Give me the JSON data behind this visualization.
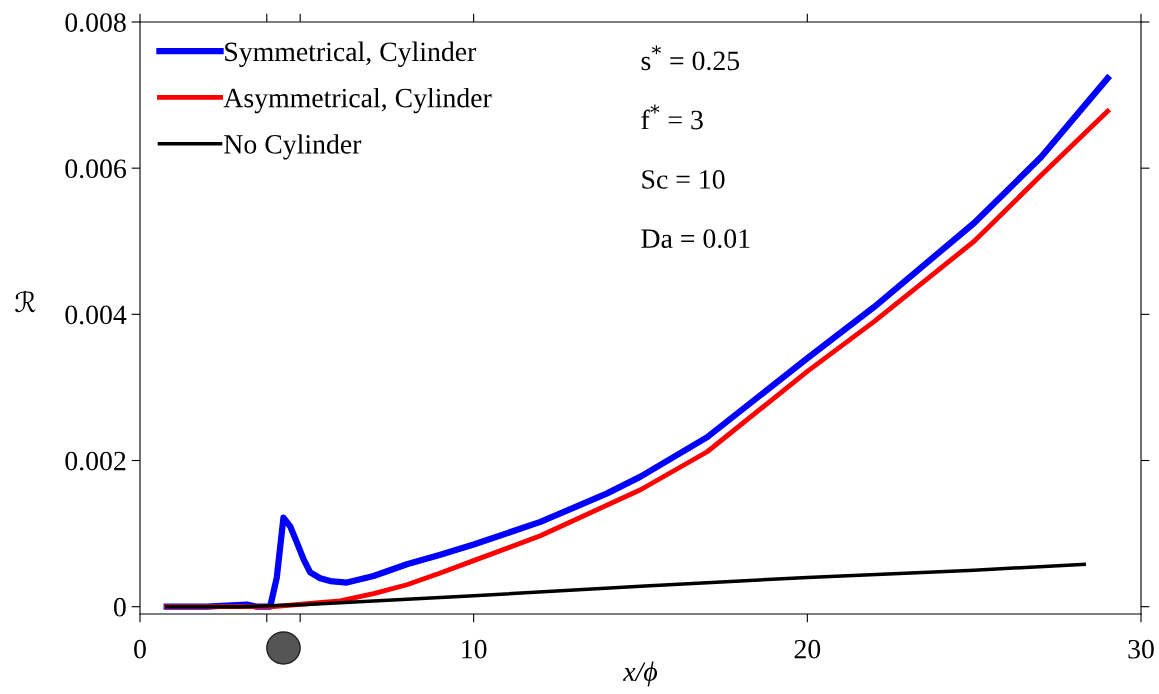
{
  "chart_data": {
    "type": "line",
    "xlabel": "x/ϕ",
    "ylabel": "ℛ",
    "xlim": [
      0,
      30
    ],
    "xticks": [
      0,
      {
        "value": 3.8,
        "label": null
      },
      {
        "value": 4.8,
        "label": null
      },
      10,
      20,
      30
    ],
    "ylim": [
      -0.0001,
      0.008
    ],
    "yticks": [
      0,
      0.002,
      0.004,
      0.006,
      0.008
    ],
    "grid": false,
    "legend": "top left",
    "marker": "none",
    "line_style": "solid",
    "annotations": [
      "s$^{*}$ = 0.25",
      "f$^{*}$ = 3",
      "Sc = 10",
      "Da = 0.01"
    ],
    "series": [
      {
        "name": "Symmetrical, Cylinder",
        "color": "#0000ff",
        "x": [
          0.8,
          2,
          3.2,
          3.5,
          3.9,
          4.1,
          4.3,
          4.5,
          4.7,
          4.9,
          5.1,
          5.4,
          5.7,
          6.2,
          7,
          8,
          9,
          10,
          12,
          14,
          15,
          17,
          20,
          22,
          25,
          27,
          29
        ],
        "values": [
          0,
          0,
          3e-05,
          0,
          0,
          0.0004,
          0.00122,
          0.0011,
          0.00088,
          0.00065,
          0.00047,
          0.00039,
          0.00035,
          0.00033,
          0.00042,
          0.00058,
          0.00071,
          0.00085,
          0.00116,
          0.00155,
          0.00178,
          0.00232,
          0.0034,
          0.0041,
          0.00525,
          0.00615,
          0.00723
        ]
      },
      {
        "name": "Asymmetrical, Cylinder",
        "color": "#ff0000",
        "x": [
          0.8,
          2,
          4,
          5,
          6,
          7,
          8,
          9,
          10,
          12,
          15,
          17,
          20,
          22,
          25,
          27,
          29
        ],
        "values": [
          0,
          0,
          0,
          4e-05,
          8e-05,
          0.00018,
          0.0003,
          0.00046,
          0.00063,
          0.00097,
          0.0016,
          0.00212,
          0.00322,
          0.0039,
          0.005,
          0.0059,
          0.00678
        ]
      },
      {
        "name": "No Cylinder",
        "color": "#000000",
        "x": [
          0.8,
          3,
          5,
          10,
          15,
          20,
          25,
          28.3
        ],
        "values": [
          0,
          0,
          3e-05,
          0.00015,
          0.00028,
          0.0004,
          0.0005,
          0.00058
        ]
      }
    ]
  }
}
